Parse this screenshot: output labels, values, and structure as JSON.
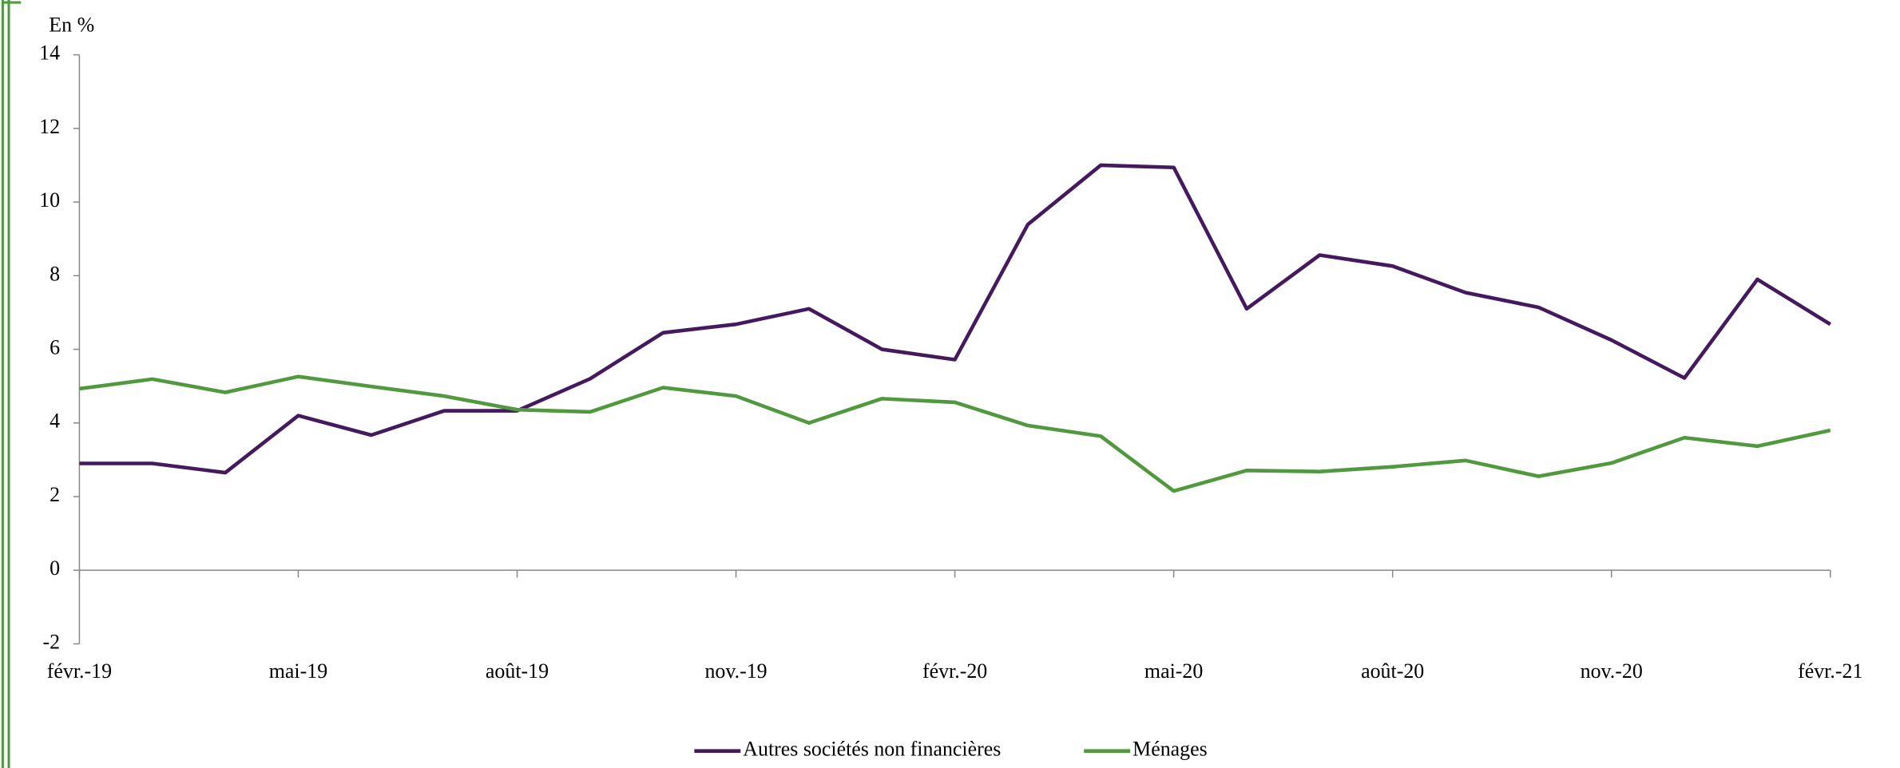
{
  "chart_data": {
    "type": "line",
    "y_label": "En %",
    "categories": [
      "févr.-19",
      null,
      null,
      "mai-19",
      null,
      null,
      "août-19",
      null,
      null,
      "nov.-19",
      null,
      null,
      "févr.-20",
      null,
      null,
      "mai-20",
      null,
      null,
      "août-20",
      null,
      null,
      "nov.-20",
      null,
      null,
      "févr.-21"
    ],
    "series": [
      {
        "name": "Autres sociétés non financières",
        "color": "#45195e",
        "values": [
          2.9,
          2.9,
          2.65,
          4.2,
          3.67,
          4.33,
          4.33,
          5.2,
          6.45,
          6.68,
          7.1,
          6.0,
          5.72,
          9.39,
          11.0,
          10.94,
          7.1,
          8.56,
          8.26,
          7.54,
          7.14,
          6.25,
          5.22,
          7.9,
          6.68
        ]
      },
      {
        "name": "Ménages",
        "color": "#50993f",
        "values": [
          4.93,
          5.19,
          4.83,
          5.26,
          4.99,
          4.73,
          4.36,
          4.3,
          4.96,
          4.73,
          4.0,
          4.66,
          4.56,
          3.93,
          3.64,
          2.15,
          2.71,
          2.68,
          2.81,
          2.98,
          2.55,
          2.91,
          3.6,
          3.37,
          3.8
        ]
      }
    ],
    "ylim": [
      -2,
      14
    ],
    "yticks": [
      -2,
      0,
      2,
      4,
      6,
      8,
      10,
      12,
      14
    ],
    "legend": "bottom"
  }
}
